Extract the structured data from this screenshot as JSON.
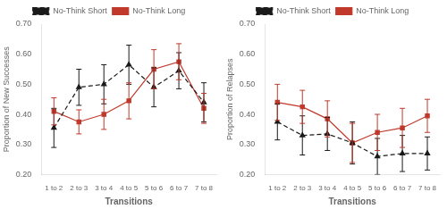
{
  "chart_data": [
    {
      "type": "line",
      "xlabel": "Transitions",
      "ylabel": "Proportion of New Successes",
      "categories": [
        "1 to 2",
        "2 to 3",
        "3 to 4",
        "4 to 5",
        "5 to 6",
        "6 to 7",
        "7 to 8"
      ],
      "series": [
        {
          "name": "No-Think Short",
          "color": "#1a1a1a",
          "line_style": "dashed",
          "marker": "triangle",
          "values": [
            0.355,
            0.49,
            0.5,
            0.565,
            0.49,
            0.545,
            0.44
          ],
          "errors": [
            0.065,
            0.06,
            0.065,
            0.065,
            0.065,
            0.06,
            0.065
          ]
        },
        {
          "name": "No-Think Long",
          "color": "#c0392b",
          "line_style": "solid",
          "marker": "square",
          "values": [
            0.41,
            0.375,
            0.4,
            0.445,
            0.55,
            0.575,
            0.42
          ],
          "errors": [
            0.045,
            0.04,
            0.05,
            0.06,
            0.065,
            0.06,
            0.05
          ]
        }
      ],
      "ylim": [
        0.2,
        0.7
      ],
      "yticks": [
        {
          "value": 0.2,
          "label": "0.20"
        },
        {
          "value": 0.3,
          "label": "0.30"
        },
        {
          "value": 0.4,
          "label": "0.40"
        },
        {
          "value": 0.5,
          "label": "0.50"
        },
        {
          "value": 0.6,
          "label": "0.60"
        },
        {
          "value": 0.7,
          "label": "0.70"
        }
      ],
      "grid": false,
      "legend": "top"
    },
    {
      "type": "line",
      "xlabel": "Transitions",
      "ylabel": "Proportion of Relapses",
      "categories": [
        "1 to 2",
        "2 to 3",
        "3 to 4",
        "4 to 5",
        "5 to 6",
        "6 to 7",
        "7 to 8"
      ],
      "series": [
        {
          "name": "No-Think Short",
          "color": "#1a1a1a",
          "line_style": "dashed",
          "marker": "triangle",
          "values": [
            0.375,
            0.33,
            0.335,
            0.305,
            0.26,
            0.27,
            0.27
          ],
          "errors": [
            0.06,
            0.065,
            0.055,
            0.07,
            0.06,
            0.06,
            0.055
          ]
        },
        {
          "name": "No-Think Long",
          "color": "#c0392b",
          "line_style": "solid",
          "marker": "square",
          "values": [
            0.44,
            0.425,
            0.385,
            0.305,
            0.34,
            0.355,
            0.395
          ],
          "errors": [
            0.06,
            0.055,
            0.06,
            0.065,
            0.06,
            0.065,
            0.055
          ]
        }
      ],
      "ylim": [
        0.2,
        0.7
      ],
      "yticks": [
        {
          "value": 0.2,
          "label": "0.20"
        },
        {
          "value": 0.3,
          "label": "0.30"
        },
        {
          "value": 0.4,
          "label": "0.40"
        },
        {
          "value": 0.5,
          "label": "0.50"
        },
        {
          "value": 0.6,
          "label": "0.60"
        },
        {
          "value": 0.7,
          "label": "0.70"
        }
      ],
      "grid": false,
      "legend": "top"
    }
  ]
}
